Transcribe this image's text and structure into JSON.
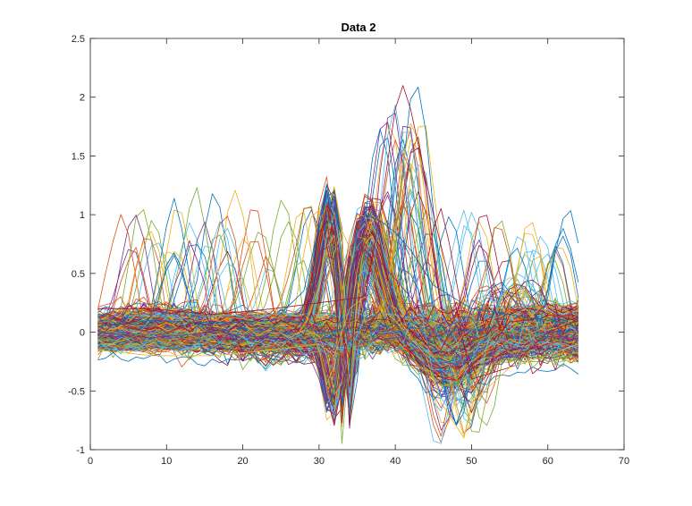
{
  "chart_data": {
    "type": "line",
    "title": "Data 2",
    "xlabel": "",
    "ylabel": "",
    "xlim": [
      0,
      70
    ],
    "ylim": [
      -1,
      2.5
    ],
    "xticks": [
      "0",
      "10",
      "20",
      "30",
      "40",
      "50",
      "60",
      "70"
    ],
    "yticks": [
      "-1",
      "-0.5",
      "0",
      "0.5",
      "1",
      "1.5",
      "2",
      "2.5"
    ],
    "grid": false,
    "legend": "none",
    "x_range": [
      1,
      64
    ],
    "series_count": 420,
    "colors": [
      "#0072BD",
      "#D95319",
      "#EDB120",
      "#7E2F8E",
      "#77AC30",
      "#4DBEEE",
      "#A2142F"
    ],
    "representative_series": [
      {
        "x": [
          1,
          8,
          16,
          24,
          28,
          30,
          31,
          32,
          33,
          34,
          35,
          36,
          38,
          40,
          42,
          45,
          50,
          55,
          60,
          64
        ],
        "y": [
          0.05,
          0.1,
          0.08,
          0.1,
          0.35,
          0.9,
          1.15,
          1.2,
          0.6,
          0.1,
          0.9,
          1.0,
          0.95,
          0.85,
          0.7,
          0.4,
          0.2,
          0.15,
          0.1,
          0.05
        ]
      },
      {
        "x": [
          1,
          8,
          16,
          24,
          28,
          30,
          31,
          32,
          33,
          34,
          35,
          36,
          38,
          40,
          42,
          45,
          50,
          55,
          60,
          64
        ],
        "y": [
          0.0,
          -0.05,
          0.0,
          -0.05,
          -0.1,
          -0.4,
          -0.65,
          -0.7,
          -0.5,
          0.1,
          0.6,
          0.75,
          0.6,
          0.45,
          0.3,
          0.0,
          -0.3,
          -0.2,
          -0.1,
          -0.05
        ]
      },
      {
        "x": [
          1,
          8,
          16,
          24,
          30,
          36,
          38,
          40,
          41,
          42,
          45,
          48,
          50,
          55,
          60,
          64
        ],
        "y": [
          0.2,
          0.2,
          0.15,
          0.2,
          0.25,
          0.3,
          1.0,
          1.9,
          2.1,
          1.9,
          1.0,
          0.2,
          -0.4,
          -0.3,
          0.0,
          0.1
        ]
      },
      {
        "x": [
          1,
          8,
          16,
          24,
          30,
          32,
          34,
          36,
          40,
          44,
          46,
          48,
          49,
          50,
          55,
          60,
          64
        ],
        "y": [
          -0.15,
          -0.2,
          -0.2,
          -0.15,
          -0.1,
          -0.2,
          0.2,
          0.3,
          0.1,
          -0.2,
          -0.6,
          -0.8,
          -0.9,
          -0.6,
          -0.3,
          -0.2,
          -0.1
        ]
      }
    ]
  }
}
